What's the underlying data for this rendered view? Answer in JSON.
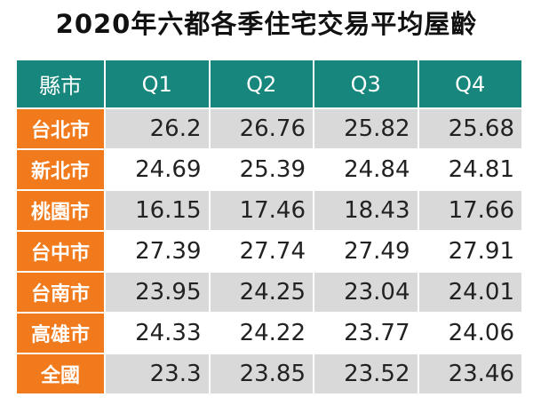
{
  "title": "2020年六都各季住宅交易平均屋齡",
  "table": {
    "header": [
      "縣市",
      "Q1",
      "Q2",
      "Q3",
      "Q4"
    ],
    "rows": [
      [
        "台北市",
        26.2,
        26.76,
        25.82,
        25.68
      ],
      [
        "新北市",
        24.69,
        25.39,
        24.84,
        24.81
      ],
      [
        "桃園市",
        16.15,
        17.46,
        18.43,
        17.66
      ],
      [
        "台中市",
        27.39,
        27.74,
        27.49,
        27.91
      ],
      [
        "台南市",
        23.95,
        24.25,
        23.04,
        24.01
      ],
      [
        "高雄市",
        24.33,
        24.22,
        23.77,
        24.06
      ],
      [
        "全國",
        23.3,
        23.85,
        23.52,
        23.46
      ]
    ]
  }
}
